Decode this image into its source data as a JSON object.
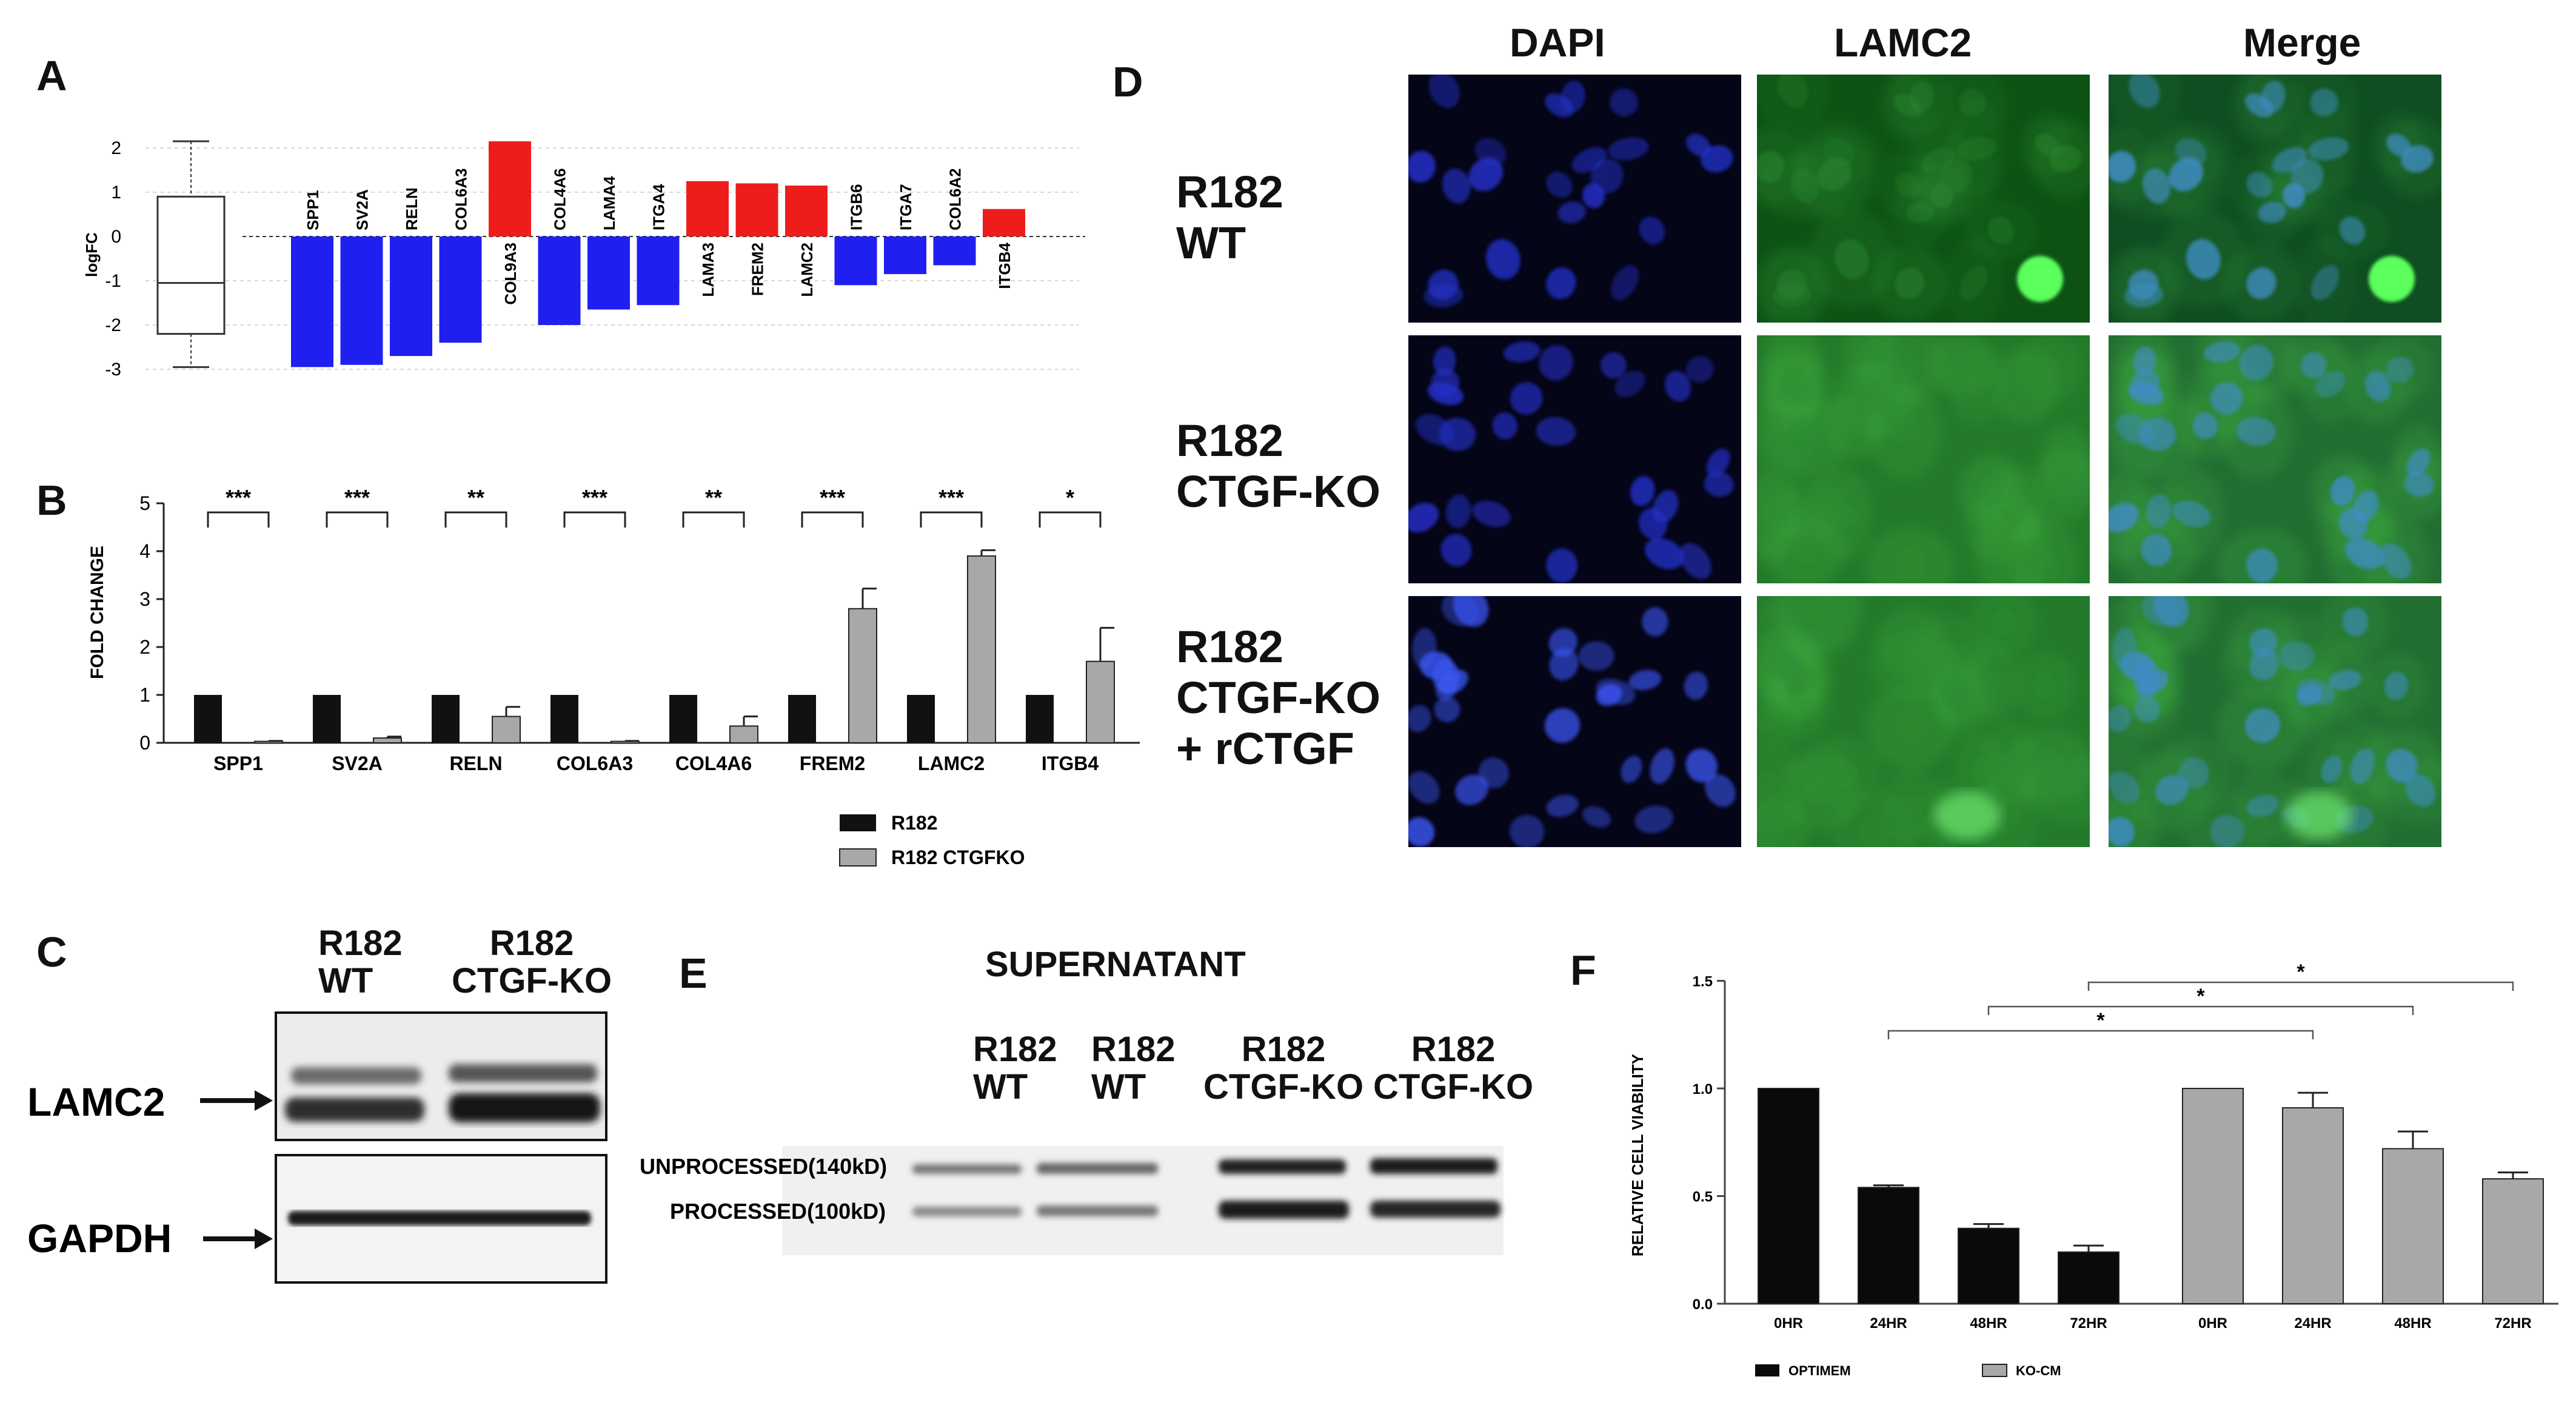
{
  "panels": {
    "A": {
      "label": "A",
      "ylabel": "logFC",
      "yticks": [
        "2",
        "1",
        "0",
        "-1",
        "-2",
        "-3"
      ],
      "chart_data": {
        "type": "bar",
        "categories": [
          "SPP1",
          "SV2A",
          "RELN",
          "COL6A3",
          "COL9A3",
          "COL4A6",
          "LAMA4",
          "ITGA4",
          "LAMA3",
          "FREM2",
          "LAMC2",
          "ITGB6",
          "ITGA7",
          "COL6A2",
          "ITGB4"
        ],
        "values": [
          -2.95,
          -2.9,
          -2.7,
          -2.4,
          2.15,
          -2.0,
          -1.65,
          -1.55,
          1.25,
          1.2,
          1.15,
          -1.1,
          -0.85,
          -0.65,
          0.62
        ],
        "colors": [
          "#1f1ff0",
          "#1f1ff0",
          "#1f1ff0",
          "#1f1ff0",
          "#ef1c1c",
          "#1f1ff0",
          "#1f1ff0",
          "#1f1ff0",
          "#ef1c1c",
          "#ef1c1c",
          "#ef1c1c",
          "#1f1ff0",
          "#1f1ff0",
          "#1f1ff0",
          "#ef1c1c"
        ],
        "ylim": [
          -3.3,
          2.3
        ],
        "boxplot": {
          "min": -2.95,
          "q1": -2.2,
          "median": -1.05,
          "q3": 0.9,
          "max": 2.15
        }
      }
    },
    "B": {
      "label": "B",
      "ylabel": "FOLD CHANGE",
      "yticks": [
        "0",
        "1",
        "2",
        "3",
        "4",
        "5"
      ],
      "chart_data": {
        "type": "bar",
        "categories": [
          "SPP1",
          "SV2A",
          "RELN",
          "COL6A3",
          "COL4A6",
          "FREM2",
          "LAMC2",
          "ITGB4"
        ],
        "series": [
          {
            "name": "R182",
            "values": [
              1,
              1,
              1,
              1,
              1,
              1,
              1,
              1
            ],
            "color": "#111111"
          },
          {
            "name": "R182 CTGFKO",
            "values": [
              0.03,
              0.1,
              0.55,
              0.03,
              0.35,
              2.8,
              3.9,
              1.7
            ],
            "errors": [
              0.01,
              0.03,
              0.2,
              0.01,
              0.2,
              0.42,
              0.12,
              0.7
            ],
            "color": "#a8a8a8"
          }
        ],
        "significance": [
          "***",
          "***",
          "**",
          "***",
          "**",
          "***",
          "***",
          "*"
        ],
        "ylim": [
          0,
          5
        ],
        "legend": "bottom-right"
      }
    },
    "C": {
      "label": "C",
      "lanes": [
        "R182\nWT",
        "R182\nCTGF-KO"
      ],
      "lane1_line1": "R182",
      "lane1_line2": "WT",
      "lane2_line1": "R182",
      "lane2_line2": "CTGF-KO",
      "blots": [
        "LAMC2",
        "GAPDH"
      ]
    },
    "D": {
      "label": "D",
      "columns": [
        "DAPI",
        "LAMC2",
        "Merge"
      ],
      "rows": [
        {
          "line1": "R182",
          "line2": "WT",
          "line3": ""
        },
        {
          "line1": "R182",
          "line2": "CTGF-KO",
          "line3": ""
        },
        {
          "line1": "R182",
          "line2": "CTGF-KO",
          "line3": "+ rCTGF"
        }
      ]
    },
    "E": {
      "label": "E",
      "title": "SUPERNATANT",
      "lanes": [
        {
          "line1": "R182",
          "line2": "WT"
        },
        {
          "line1": "R182",
          "line2": "WT"
        },
        {
          "line1": "R182",
          "line2": "CTGF-KO"
        },
        {
          "line1": "R182",
          "line2": "CTGF-KO"
        }
      ],
      "bands": [
        "UNPROCESSED(140kD)",
        "PROCESSED(100kD)"
      ]
    },
    "F": {
      "label": "F",
      "ylabel": "RELATIVE CELL VIABILITY",
      "yticks": [
        "0.0",
        "0.5",
        "1.0",
        "1.5"
      ],
      "chart_data": {
        "type": "bar",
        "groups": [
          {
            "name": "OPTIMEM",
            "categories": [
              "0HR",
              "24HR",
              "48HR",
              "72HR"
            ],
            "values": [
              1.0,
              0.54,
              0.35,
              0.24
            ],
            "errors": [
              0,
              0.01,
              0.02,
              0.03
            ],
            "color": "#0a0a0a"
          },
          {
            "name": "KO-CM",
            "categories": [
              "0HR",
              "24HR",
              "48HR",
              "72HR"
            ],
            "values": [
              1.0,
              0.91,
              0.72,
              0.58
            ],
            "errors": [
              0,
              0.07,
              0.08,
              0.03
            ],
            "color": "#a8a8a8"
          }
        ],
        "significance": [
          "*",
          "*",
          "*"
        ],
        "ylim": [
          0,
          1.5
        ],
        "legend": "bottom"
      }
    }
  }
}
